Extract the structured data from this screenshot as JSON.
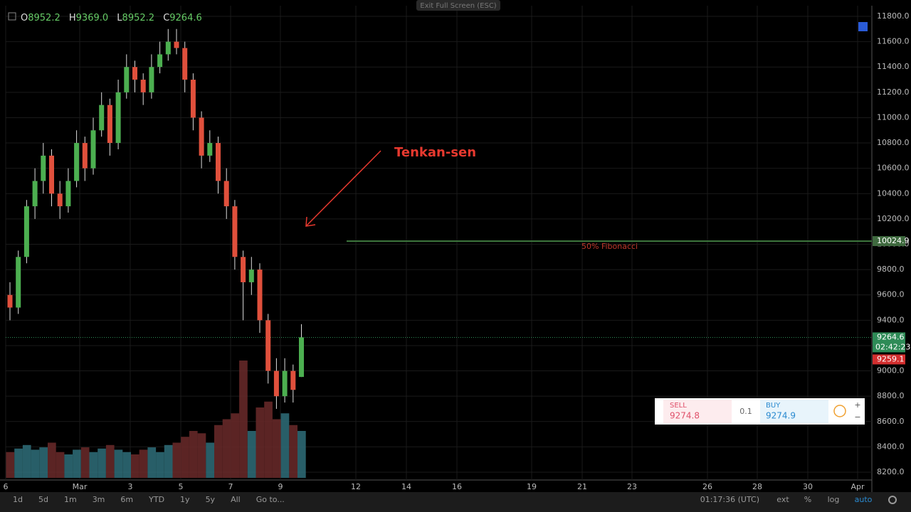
{
  "chart_data": {
    "type": "candlestick",
    "header": {
      "o_label": "O",
      "o": "8952.2",
      "h_label": "H",
      "h": "9369.0",
      "l_label": "L",
      "l": "8952.2",
      "c_label": "C",
      "c": "9264.6"
    },
    "fullscreen_hint": "Exit Full Screen (ESC)",
    "annotation": "Tenkan-sen",
    "fib_label": "50% Fibonacci",
    "fib_level": 10024.9,
    "last_price": 9264.6,
    "countdown": "02:42:23",
    "bid_price": 9259.1,
    "ohlc": [
      [
        9600,
        9700,
        9400,
        9500
      ],
      [
        9500,
        9950,
        9450,
        9900
      ],
      [
        9900,
        10350,
        9850,
        10300
      ],
      [
        10300,
        10600,
        10200,
        10500
      ],
      [
        10500,
        10800,
        10400,
        10700
      ],
      [
        10700,
        10750,
        10300,
        10400
      ],
      [
        10400,
        10500,
        10200,
        10300
      ],
      [
        10300,
        10600,
        10250,
        10500
      ],
      [
        10500,
        10900,
        10450,
        10800
      ],
      [
        10800,
        10850,
        10500,
        10600
      ],
      [
        10600,
        11000,
        10550,
        10900
      ],
      [
        10900,
        11200,
        10850,
        11100
      ],
      [
        11100,
        11150,
        10700,
        10800
      ],
      [
        10800,
        11300,
        10750,
        11200
      ],
      [
        11200,
        11500,
        11150,
        11400
      ],
      [
        11400,
        11450,
        11200,
        11300
      ],
      [
        11300,
        11350,
        11100,
        11200
      ],
      [
        11200,
        11500,
        11150,
        11400
      ],
      [
        11400,
        11600,
        11350,
        11500
      ],
      [
        11500,
        11700,
        11450,
        11600
      ],
      [
        11600,
        11700,
        11500,
        11550
      ],
      [
        11550,
        11600,
        11200,
        11300
      ],
      [
        11300,
        11350,
        10900,
        11000
      ],
      [
        11000,
        11050,
        10600,
        10700
      ],
      [
        10700,
        10900,
        10650,
        10800
      ],
      [
        10800,
        10850,
        10400,
        10500
      ],
      [
        10500,
        10600,
        10200,
        10300
      ],
      [
        10300,
        10350,
        9800,
        9900
      ],
      [
        9900,
        9950,
        9400,
        9700
      ],
      [
        9700,
        9900,
        9600,
        9800
      ],
      [
        9800,
        9850,
        9300,
        9400
      ],
      [
        9400,
        9450,
        8900,
        9000
      ],
      [
        9000,
        9100,
        8700,
        8800
      ],
      [
        8800,
        9100,
        8750,
        9000
      ],
      [
        9000,
        9050,
        8750,
        8850
      ],
      [
        8952.2,
        9369,
        8952.2,
        9264.6
      ]
    ],
    "volume": [
      22,
      25,
      28,
      24,
      26,
      30,
      22,
      20,
      24,
      26,
      22,
      25,
      28,
      24,
      22,
      20,
      24,
      26,
      22,
      28,
      30,
      35,
      40,
      38,
      30,
      45,
      50,
      55,
      100,
      40,
      60,
      65,
      50,
      55,
      45,
      40
    ],
    "up_color": "#4caf50",
    "down_color": "#e0503c",
    "ylim": [
      8200,
      11800
    ],
    "yticks": [
      {
        "value": 8200,
        "label": "8200.0"
      },
      {
        "value": 8400,
        "label": "8400.0"
      },
      {
        "value": 8600,
        "label": "8600.0"
      },
      {
        "value": 8800,
        "label": "8800.0"
      },
      {
        "value": 9000,
        "label": "9000.0"
      },
      {
        "value": 9200,
        "label": "9200.0"
      },
      {
        "value": 9400,
        "label": "9400.0"
      },
      {
        "value": 9600,
        "label": "9600.0"
      },
      {
        "value": 9800,
        "label": "9800.0"
      },
      {
        "value": 10000,
        "label": "10000.0"
      },
      {
        "value": 10200,
        "label": "10200.0"
      },
      {
        "value": 10400,
        "label": "10400.0"
      },
      {
        "value": 10600,
        "label": "10600.0"
      },
      {
        "value": 10800,
        "label": "10800.0"
      },
      {
        "value": 11000,
        "label": "11000.0"
      },
      {
        "value": 11200,
        "label": "11200.0"
      },
      {
        "value": 11400,
        "label": "11400.0"
      },
      {
        "value": 11600,
        "label": "11600.0"
      },
      {
        "value": 11800,
        "label": "11800.0"
      }
    ],
    "xlabels": [
      "6",
      "Mar",
      "3",
      "5",
      "7",
      "9",
      "12",
      "14",
      "16",
      "19",
      "21",
      "23",
      "26",
      "28",
      "30",
      "Apr"
    ],
    "grid": true,
    "toolbar": [
      "1d",
      "5d",
      "1m",
      "3m",
      "6m",
      "YTD",
      "1y",
      "5y",
      "All",
      "Go to..."
    ],
    "clock": "01:17:36 (UTC)",
    "toggles": [
      "ext",
      "%",
      "log",
      "auto"
    ],
    "trade": {
      "sell_label": "SELL",
      "sell": "9274.8",
      "qty": "0.1",
      "buy_label": "BUY",
      "buy": "9274.9"
    }
  }
}
